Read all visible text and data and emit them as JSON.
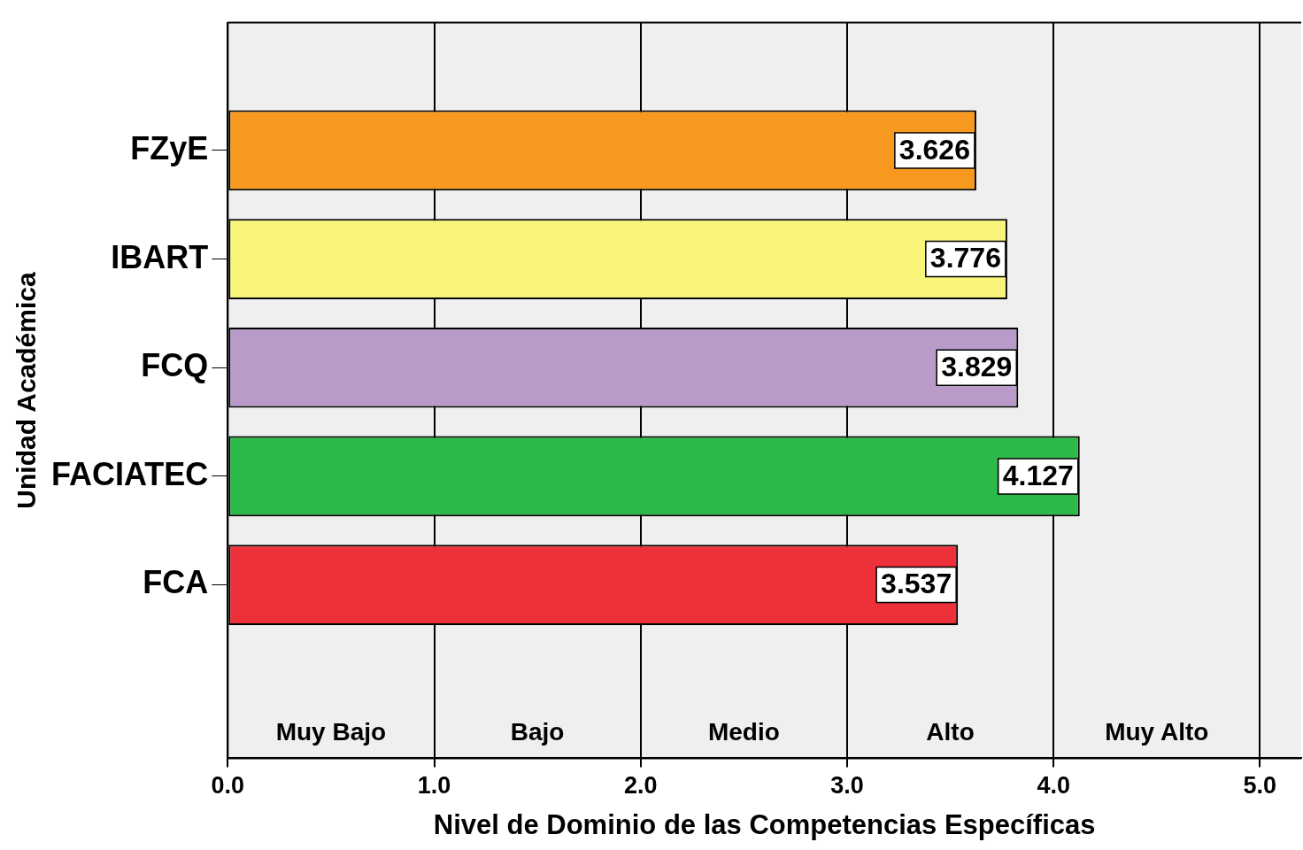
{
  "chart_data": {
    "type": "bar",
    "orientation": "horizontal",
    "categories": [
      "FZyE",
      "IBART",
      "FCQ",
      "FACIATEC",
      "FCA"
    ],
    "values": [
      3.626,
      3.776,
      3.829,
      4.127,
      3.537
    ],
    "colors": [
      "#f7991f",
      "#f9f57a",
      "#b89bc9",
      "#2db84a",
      "#ee303a"
    ],
    "data_labels": true,
    "xlim": [
      0,
      5.2
    ],
    "xticks": [
      {
        "value": 0,
        "label": "0.0"
      },
      {
        "value": 1,
        "label": "1.0"
      },
      {
        "value": 2,
        "label": "2.0"
      },
      {
        "value": 3,
        "label": "3.0"
      },
      {
        "value": 4,
        "label": "4.0"
      },
      {
        "value": 5,
        "label": "5.0"
      }
    ],
    "xlabel": "Nivel de Dominio de las Competencias Específicas",
    "ylabel": "Unidad Académica",
    "grid": "x",
    "legend": false,
    "annotations": [
      "Muy Bajo",
      "Bajo",
      "Medio",
      "Alto",
      "Muy Alto"
    ]
  }
}
